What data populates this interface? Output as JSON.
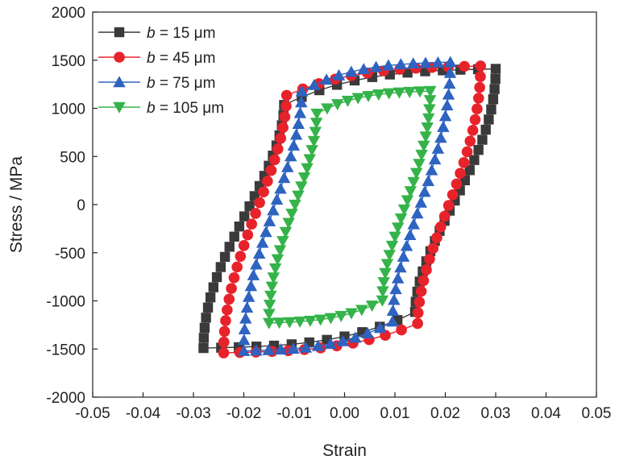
{
  "chart_data": {
    "type": "scatter",
    "xlabel": "Strain",
    "ylabel": "Stress / MPa",
    "xlim": [
      -0.05,
      0.05
    ],
    "ylim": [
      -2000,
      2000
    ],
    "x_ticks": [
      -0.05,
      -0.04,
      -0.03,
      -0.02,
      -0.01,
      0.0,
      0.01,
      0.02,
      0.03,
      0.04,
      0.05
    ],
    "x_tick_labels": [
      "-0.05",
      "-0.04",
      "-0.03",
      "-0.02",
      "-0.01",
      "0.00",
      "0.01",
      "0.02",
      "0.03",
      "0.04",
      "0.05"
    ],
    "y_ticks": [
      -2000,
      -1500,
      -1000,
      -500,
      0,
      500,
      1000,
      1500,
      2000
    ],
    "y_tick_labels": [
      "-2000",
      "-1500",
      "-1000",
      "-500",
      "0",
      "500",
      "1000",
      "1500",
      "2000"
    ],
    "grid": false,
    "legend_position": "top-left",
    "series": [
      {
        "name_var": "b",
        "name_rest": " = 15 μm",
        "color": "#3a3a3a",
        "marker": "square",
        "emin": -0.028,
        "emax": 0.03,
        "smin": -1490,
        "smax": 1410,
        "corner_x": 0.016,
        "corner_y": 330,
        "tail_y": 45,
        "loading_sharpness": 5.0,
        "branch_points": 36
      },
      {
        "name_var": "b",
        "name_rest": " = 45 μm",
        "color": "#e8222a",
        "marker": "circle",
        "emin": -0.024,
        "emax": 0.027,
        "smin": -1540,
        "smax": 1440,
        "corner_x": 0.0125,
        "corner_y": 260,
        "tail_y": 45,
        "loading_sharpness": 3.4,
        "branch_points": 36
      },
      {
        "name_var": "b",
        "name_rest": " = 75 μm",
        "color": "#2e63c0",
        "marker": "triangle-up",
        "emin": -0.02,
        "emax": 0.021,
        "smin": -1520,
        "smax": 1480,
        "corner_x": 0.0115,
        "corner_y": 260,
        "tail_y": 45,
        "loading_sharpness": 2.4,
        "branch_points": 36
      },
      {
        "name_var": "b",
        "name_rest": " = 105 μm",
        "color": "#35b34a",
        "marker": "triangle-down",
        "emin": -0.015,
        "emax": 0.017,
        "smin": -1230,
        "smax": 1180,
        "corner_x": 0.0095,
        "corner_y": 190,
        "tail_y": 45,
        "loading_sharpness": 3.0,
        "branch_points": 34
      }
    ]
  }
}
